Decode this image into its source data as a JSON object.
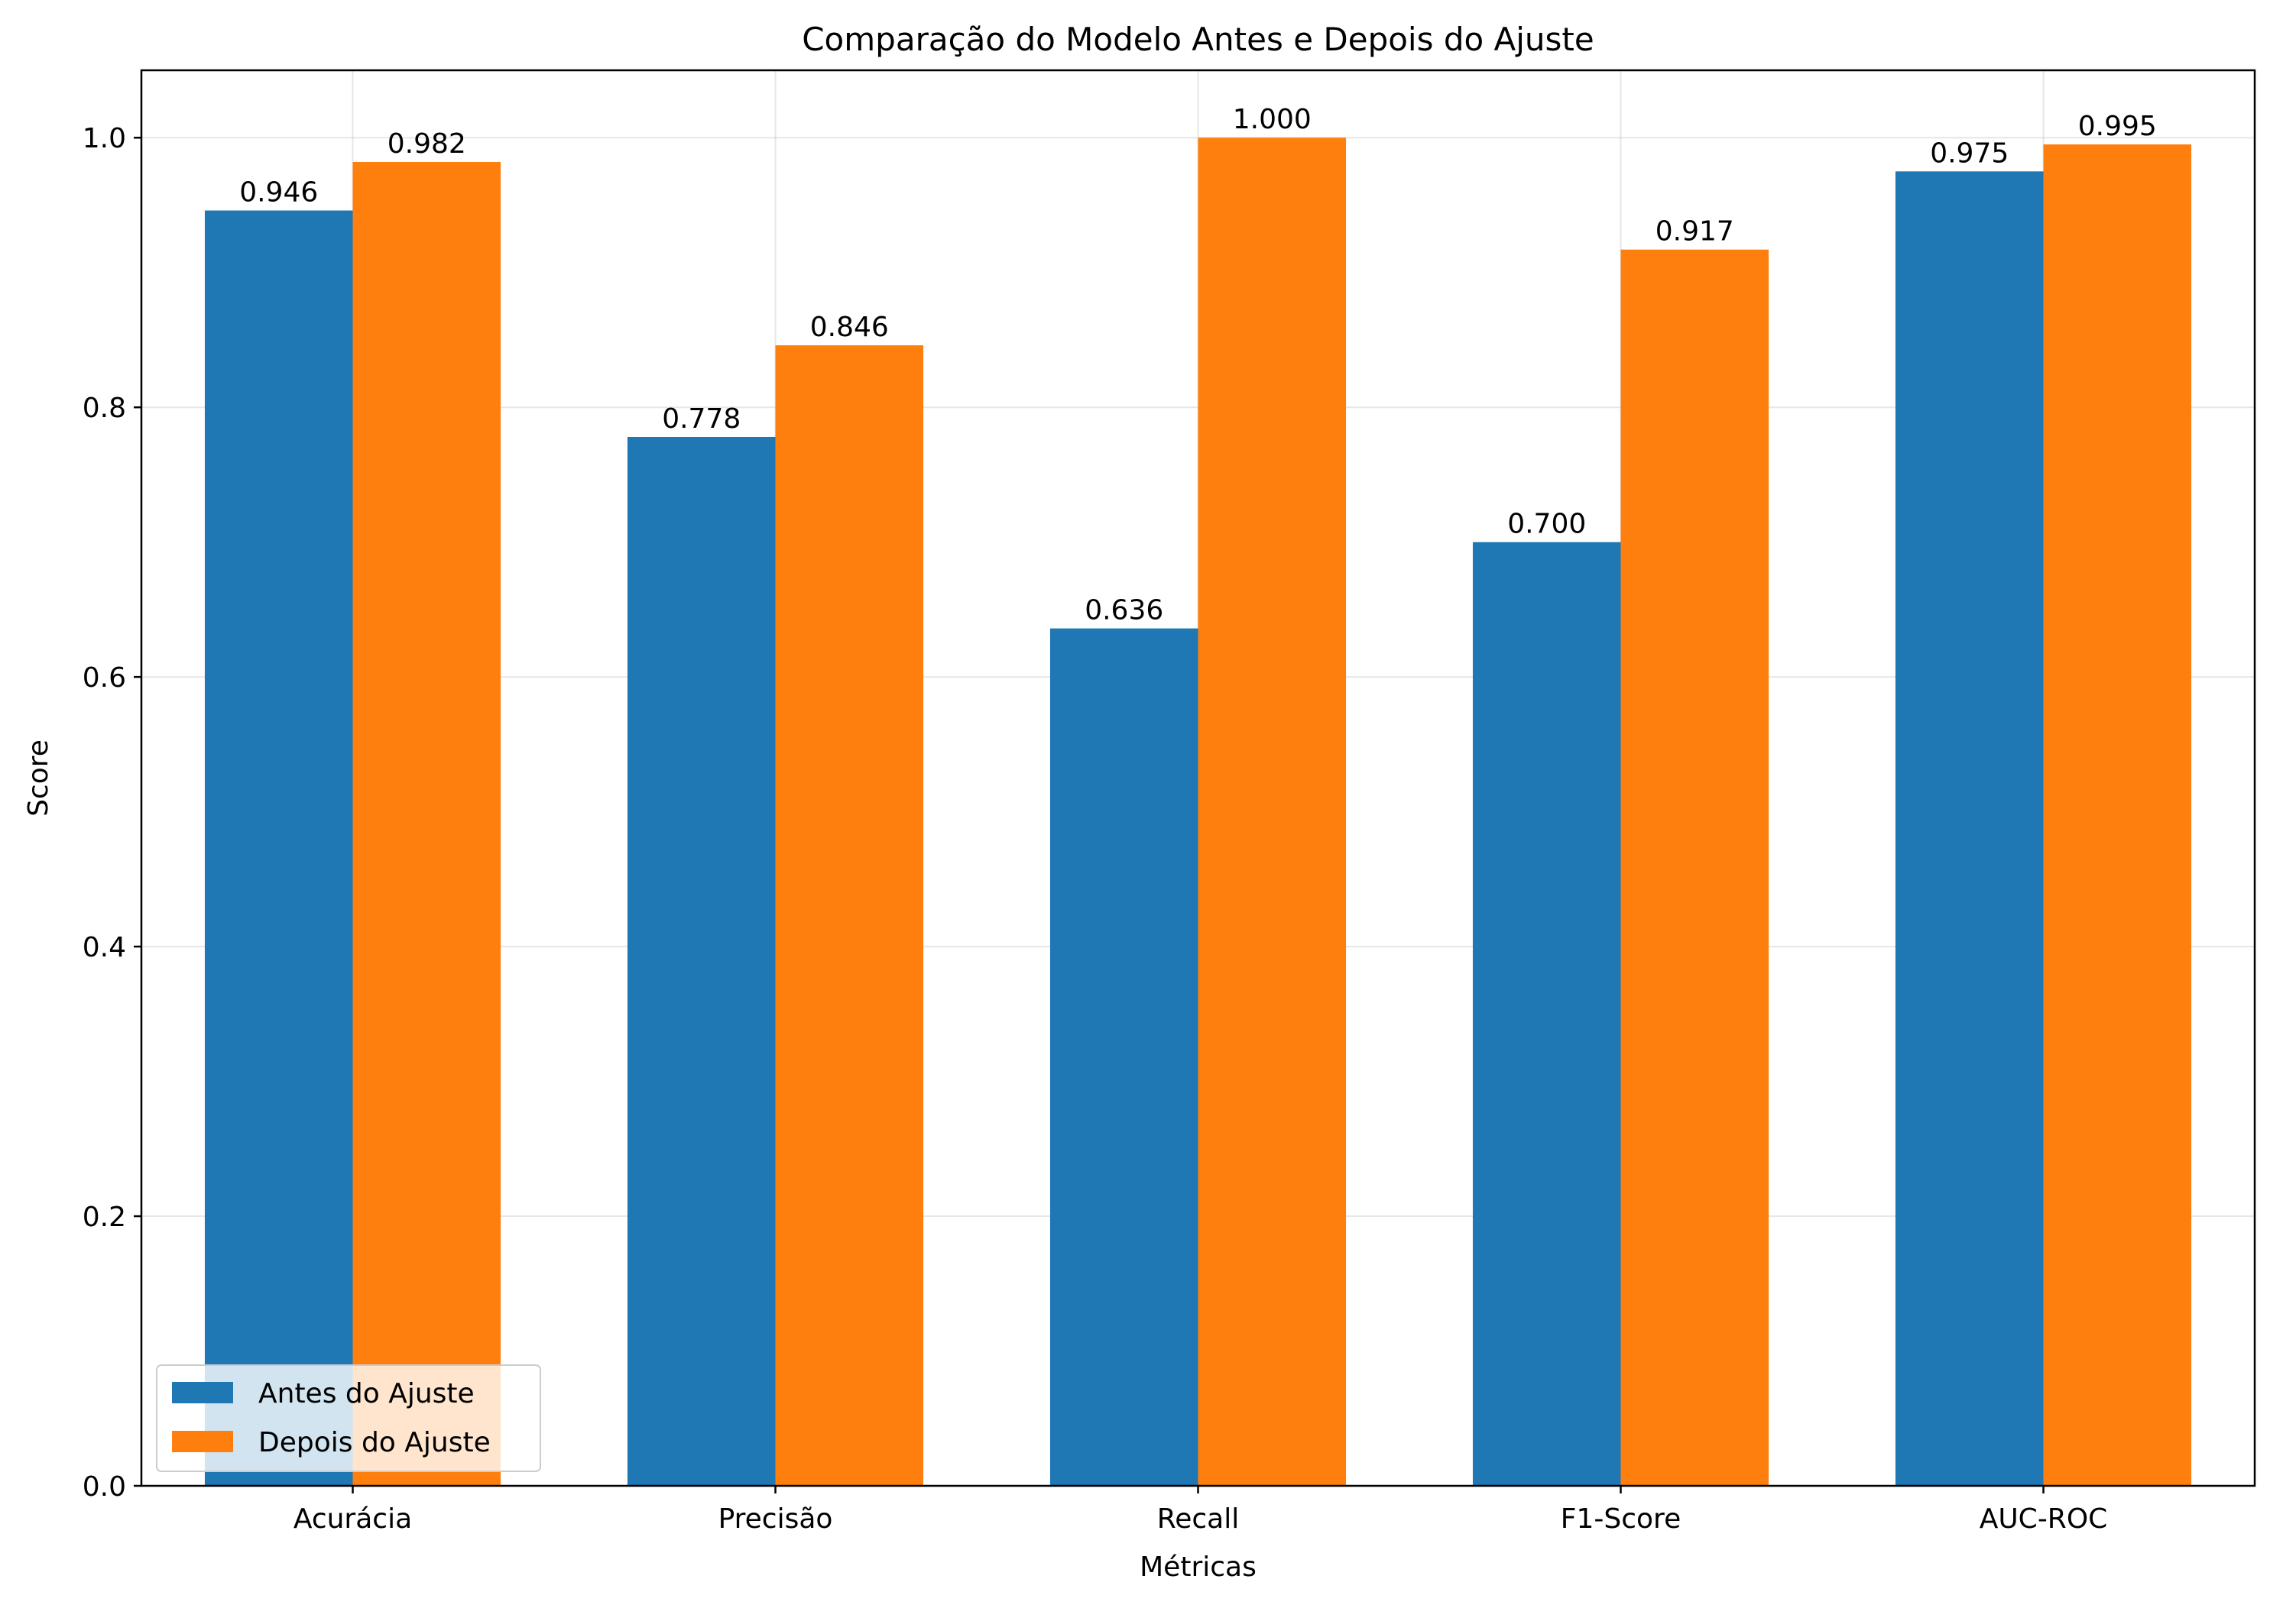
{
  "chart_data": {
    "type": "bar",
    "title": "Comparação do Modelo Antes e Depois do Ajuste",
    "xlabel": "Métricas",
    "ylabel": "Score",
    "categories": [
      "Acurácia",
      "Precisão",
      "Recall",
      "F1-Score",
      "AUC-ROC"
    ],
    "series": [
      {
        "name": "Antes do Ajuste",
        "color": "#1f77b4",
        "values": [
          0.946,
          0.778,
          0.636,
          0.7,
          0.975
        ],
        "labels": [
          "0.946",
          "0.778",
          "0.636",
          "0.700",
          "0.975"
        ]
      },
      {
        "name": "Depois do Ajuste",
        "color": "#ff7f0e",
        "values": [
          0.982,
          0.846,
          1.0,
          0.917,
          0.995
        ],
        "labels": [
          "0.982",
          "0.846",
          "1.000",
          "0.917",
          "0.995"
        ]
      }
    ],
    "ylim": [
      0,
      1.05
    ],
    "yticks": [
      "0.0",
      "0.2",
      "0.4",
      "0.6",
      "0.8",
      "1.0"
    ],
    "grid": true,
    "legend_position": "lower-left"
  }
}
